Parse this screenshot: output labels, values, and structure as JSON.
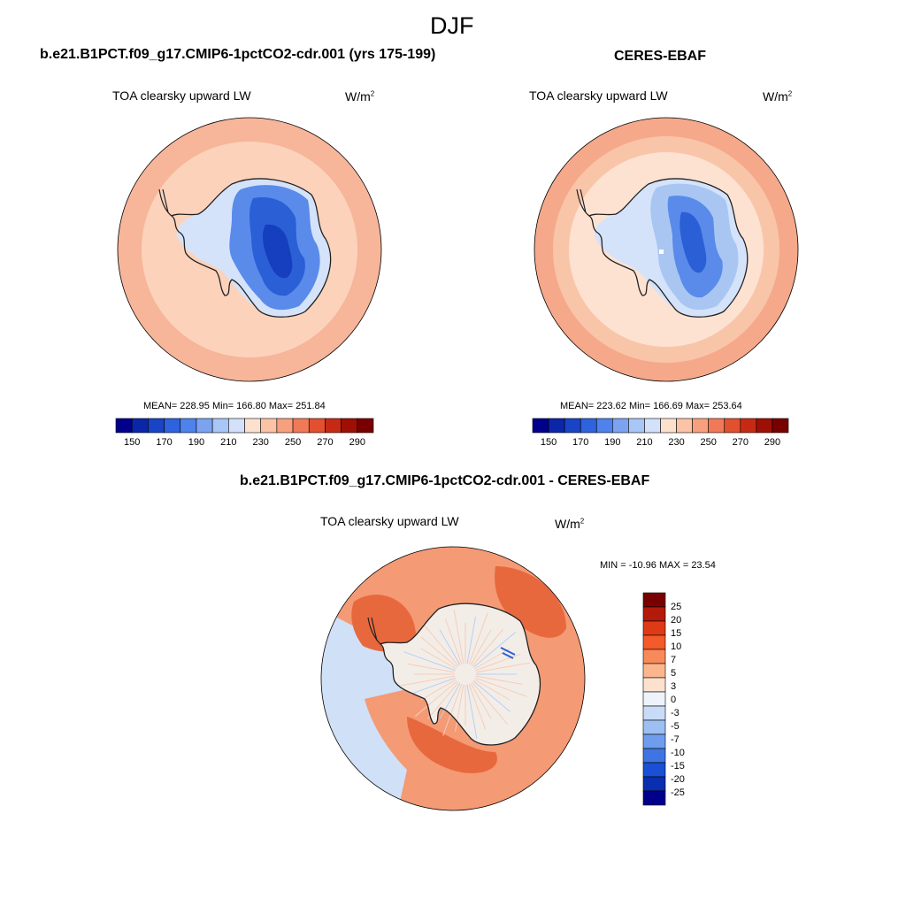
{
  "figure": {
    "season": "DJF",
    "units_base": "W/m",
    "units_exp": "2"
  },
  "panels": [
    {
      "id": "model",
      "header": "b.e21.B1PCT.f09_g17.CMIP6-1pctCO2-cdr.001 (yrs 175-199)",
      "variable": "TOA clearsky upward LW",
      "stats": "MEAN= 228.95  Min= 166.80  Max= 251.84",
      "colorbar_ticks": [
        "150",
        "170",
        "190",
        "210",
        "230",
        "250",
        "270",
        "290"
      ]
    },
    {
      "id": "obs",
      "header": "CERES-EBAF",
      "variable": "TOA clearsky upward LW",
      "stats": "MEAN= 223.62  Min= 166.69  Max= 253.64",
      "colorbar_ticks": [
        "150",
        "170",
        "190",
        "210",
        "230",
        "250",
        "270",
        "290"
      ]
    },
    {
      "id": "diff",
      "header": "b.e21.B1PCT.f09_g17.CMIP6-1pctCO2-cdr.001 - CERES-EBAF",
      "variable": "TOA clearsky upward LW",
      "stats": "MIN = -10.96 MAX =  23.54",
      "colorbar_ticks": [
        "25",
        "20",
        "15",
        "10",
        "7",
        "5",
        "3",
        "0",
        "-3",
        "-5",
        "-7",
        "-10",
        "-15",
        "-20",
        "-25"
      ]
    }
  ],
  "colors": {
    "abs_scale": [
      "#00008c",
      "#0b26a8",
      "#1a44c6",
      "#2f62de",
      "#4e82ec",
      "#7ba3f2",
      "#a8c6f6",
      "#d3e2fa",
      "#fde1cf",
      "#fcc3a6",
      "#f8a07e",
      "#f07a58",
      "#e2502f",
      "#c72a14",
      "#9e0f06",
      "#780000"
    ],
    "diff_scale": [
      "#780000",
      "#b41a0a",
      "#de3a16",
      "#f45a2a",
      "#f88a5a",
      "#fbb68e",
      "#fde1cf",
      "#eef3fb",
      "#c9dbf6",
      "#9dbff2",
      "#6f9ded",
      "#3f75e2",
      "#1b4fd6",
      "#0a2eb0",
      "#00008c"
    ],
    "ocean_model": "#f7b59a",
    "ocean_model_inner": "#fcd2bb",
    "ocean_obs": "#f5a98a",
    "ocean_obs_inner": "#fde2d2",
    "ice_blue_1": "#5a8bea",
    "ice_blue_2": "#2a5fd6",
    "ice_blue_3": "#153fbf",
    "ice_light": "#d4e3fa",
    "ice_pale": "#a9c6f3",
    "diff_ocean": "#f49a74",
    "diff_warm": "#e8683e",
    "diff_land": "#f3ede8",
    "diff_cool": "#cfe0f7"
  }
}
